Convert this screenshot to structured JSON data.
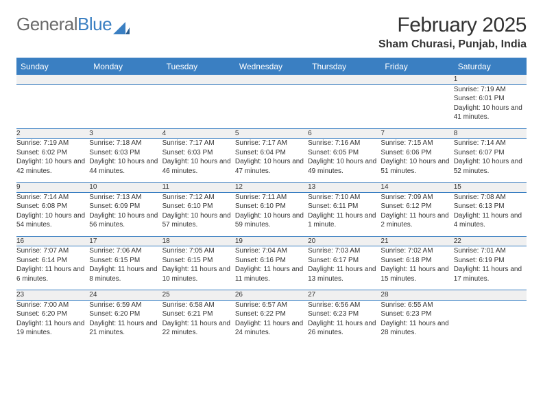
{
  "logo": {
    "text_gray": "General",
    "text_blue": "Blue"
  },
  "title": "February 2025",
  "location": "Sham Churasi, Punjab, India",
  "colors": {
    "header_blue": "#3a7fc2",
    "daynum_bg": "#f0f0f0",
    "text": "#333333",
    "logo_gray": "#6a6a6a"
  },
  "day_headers": [
    "Sunday",
    "Monday",
    "Tuesday",
    "Wednesday",
    "Thursday",
    "Friday",
    "Saturday"
  ],
  "weeks": [
    [
      null,
      null,
      null,
      null,
      null,
      null,
      {
        "n": "1",
        "sunrise": "Sunrise: 7:19 AM",
        "sunset": "Sunset: 6:01 PM",
        "daylight": "Daylight: 10 hours and 41 minutes."
      }
    ],
    [
      {
        "n": "2",
        "sunrise": "Sunrise: 7:19 AM",
        "sunset": "Sunset: 6:02 PM",
        "daylight": "Daylight: 10 hours and 42 minutes."
      },
      {
        "n": "3",
        "sunrise": "Sunrise: 7:18 AM",
        "sunset": "Sunset: 6:03 PM",
        "daylight": "Daylight: 10 hours and 44 minutes."
      },
      {
        "n": "4",
        "sunrise": "Sunrise: 7:17 AM",
        "sunset": "Sunset: 6:03 PM",
        "daylight": "Daylight: 10 hours and 46 minutes."
      },
      {
        "n": "5",
        "sunrise": "Sunrise: 7:17 AM",
        "sunset": "Sunset: 6:04 PM",
        "daylight": "Daylight: 10 hours and 47 minutes."
      },
      {
        "n": "6",
        "sunrise": "Sunrise: 7:16 AM",
        "sunset": "Sunset: 6:05 PM",
        "daylight": "Daylight: 10 hours and 49 minutes."
      },
      {
        "n": "7",
        "sunrise": "Sunrise: 7:15 AM",
        "sunset": "Sunset: 6:06 PM",
        "daylight": "Daylight: 10 hours and 51 minutes."
      },
      {
        "n": "8",
        "sunrise": "Sunrise: 7:14 AM",
        "sunset": "Sunset: 6:07 PM",
        "daylight": "Daylight: 10 hours and 52 minutes."
      }
    ],
    [
      {
        "n": "9",
        "sunrise": "Sunrise: 7:14 AM",
        "sunset": "Sunset: 6:08 PM",
        "daylight": "Daylight: 10 hours and 54 minutes."
      },
      {
        "n": "10",
        "sunrise": "Sunrise: 7:13 AM",
        "sunset": "Sunset: 6:09 PM",
        "daylight": "Daylight: 10 hours and 56 minutes."
      },
      {
        "n": "11",
        "sunrise": "Sunrise: 7:12 AM",
        "sunset": "Sunset: 6:10 PM",
        "daylight": "Daylight: 10 hours and 57 minutes."
      },
      {
        "n": "12",
        "sunrise": "Sunrise: 7:11 AM",
        "sunset": "Sunset: 6:10 PM",
        "daylight": "Daylight: 10 hours and 59 minutes."
      },
      {
        "n": "13",
        "sunrise": "Sunrise: 7:10 AM",
        "sunset": "Sunset: 6:11 PM",
        "daylight": "Daylight: 11 hours and 1 minute."
      },
      {
        "n": "14",
        "sunrise": "Sunrise: 7:09 AM",
        "sunset": "Sunset: 6:12 PM",
        "daylight": "Daylight: 11 hours and 2 minutes."
      },
      {
        "n": "15",
        "sunrise": "Sunrise: 7:08 AM",
        "sunset": "Sunset: 6:13 PM",
        "daylight": "Daylight: 11 hours and 4 minutes."
      }
    ],
    [
      {
        "n": "16",
        "sunrise": "Sunrise: 7:07 AM",
        "sunset": "Sunset: 6:14 PM",
        "daylight": "Daylight: 11 hours and 6 minutes."
      },
      {
        "n": "17",
        "sunrise": "Sunrise: 7:06 AM",
        "sunset": "Sunset: 6:15 PM",
        "daylight": "Daylight: 11 hours and 8 minutes."
      },
      {
        "n": "18",
        "sunrise": "Sunrise: 7:05 AM",
        "sunset": "Sunset: 6:15 PM",
        "daylight": "Daylight: 11 hours and 10 minutes."
      },
      {
        "n": "19",
        "sunrise": "Sunrise: 7:04 AM",
        "sunset": "Sunset: 6:16 PM",
        "daylight": "Daylight: 11 hours and 11 minutes."
      },
      {
        "n": "20",
        "sunrise": "Sunrise: 7:03 AM",
        "sunset": "Sunset: 6:17 PM",
        "daylight": "Daylight: 11 hours and 13 minutes."
      },
      {
        "n": "21",
        "sunrise": "Sunrise: 7:02 AM",
        "sunset": "Sunset: 6:18 PM",
        "daylight": "Daylight: 11 hours and 15 minutes."
      },
      {
        "n": "22",
        "sunrise": "Sunrise: 7:01 AM",
        "sunset": "Sunset: 6:19 PM",
        "daylight": "Daylight: 11 hours and 17 minutes."
      }
    ],
    [
      {
        "n": "23",
        "sunrise": "Sunrise: 7:00 AM",
        "sunset": "Sunset: 6:20 PM",
        "daylight": "Daylight: 11 hours and 19 minutes."
      },
      {
        "n": "24",
        "sunrise": "Sunrise: 6:59 AM",
        "sunset": "Sunset: 6:20 PM",
        "daylight": "Daylight: 11 hours and 21 minutes."
      },
      {
        "n": "25",
        "sunrise": "Sunrise: 6:58 AM",
        "sunset": "Sunset: 6:21 PM",
        "daylight": "Daylight: 11 hours and 22 minutes."
      },
      {
        "n": "26",
        "sunrise": "Sunrise: 6:57 AM",
        "sunset": "Sunset: 6:22 PM",
        "daylight": "Daylight: 11 hours and 24 minutes."
      },
      {
        "n": "27",
        "sunrise": "Sunrise: 6:56 AM",
        "sunset": "Sunset: 6:23 PM",
        "daylight": "Daylight: 11 hours and 26 minutes."
      },
      {
        "n": "28",
        "sunrise": "Sunrise: 6:55 AM",
        "sunset": "Sunset: 6:23 PM",
        "daylight": "Daylight: 11 hours and 28 minutes."
      },
      null
    ]
  ]
}
